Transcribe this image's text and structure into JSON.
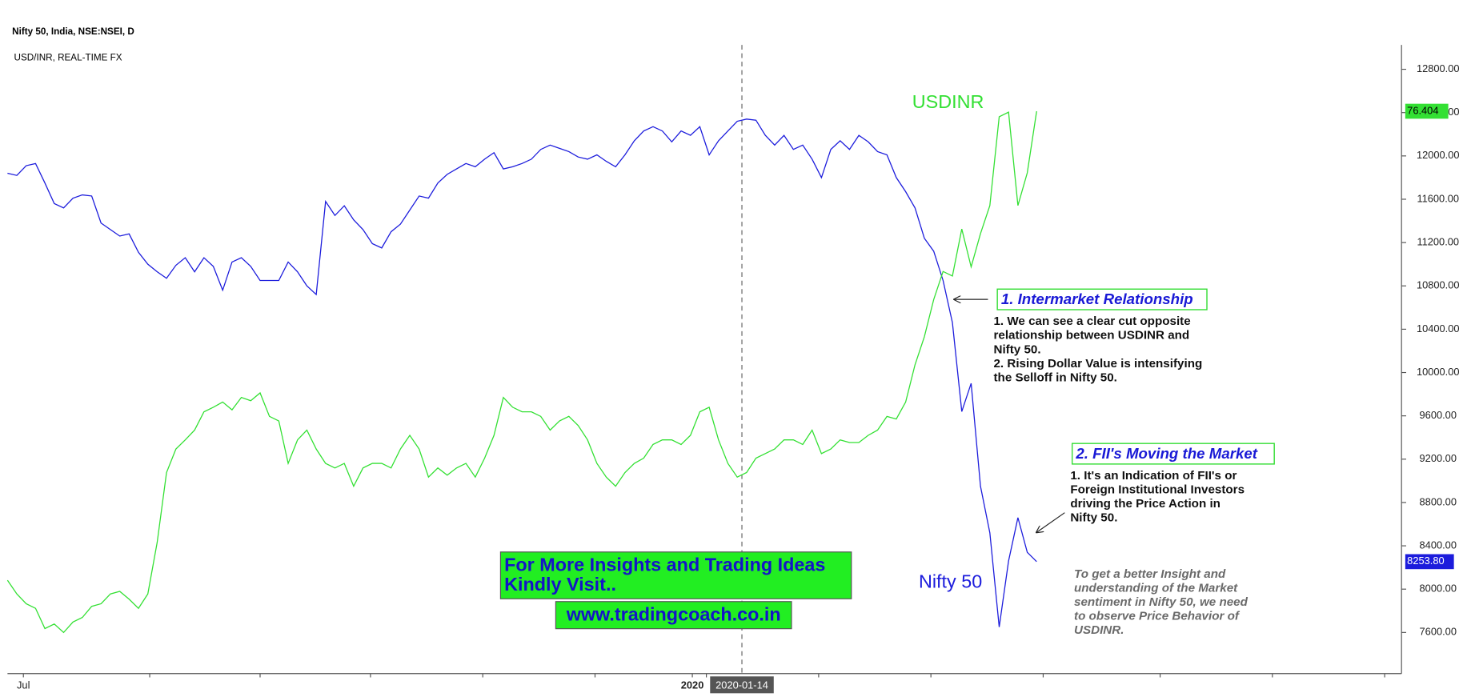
{
  "chart_data": {
    "type": "line",
    "title": "Nifty 50, India, NSE:NSEI, D",
    "subtitle": "USD/INR, REAL-TIME FX",
    "xlim": [
      0,
      149
    ],
    "xticks": [
      {
        "value": 1.7,
        "label": "Jul"
      },
      {
        "value": 73.2,
        "label": "2020"
      }
    ],
    "crosshair": {
      "value": 78.5,
      "label": "2020-01-14"
    },
    "ylim": [
      7220,
      13025
    ],
    "yticks": [
      {
        "value": 7600,
        "label": "7600.00"
      },
      {
        "value": 8000,
        "label": "8000.00"
      },
      {
        "value": 8400,
        "label": "8400.00"
      },
      {
        "value": 8800,
        "label": "8800.00"
      },
      {
        "value": 9200,
        "label": "9200.00"
      },
      {
        "value": 9600,
        "label": "9600.00"
      },
      {
        "value": 10000,
        "label": "10000.00"
      },
      {
        "value": 10400,
        "label": "10400.00"
      },
      {
        "value": 10800,
        "label": "10800.00"
      },
      {
        "value": 11200,
        "label": "11200.00"
      },
      {
        "value": 11600,
        "label": "11600.00"
      },
      {
        "value": 12000,
        "label": "12000.00"
      },
      {
        "value": 12400,
        "label": "12400.00"
      },
      {
        "value": 12800,
        "label": "12800.00"
      }
    ],
    "y2lim": [
      67.79,
      77.42
    ],
    "series": [
      {
        "name": "Nifty 50",
        "color": "#1c1cdc",
        "values": [
          11840,
          11820,
          11910,
          11930,
          11750,
          11560,
          11520,
          11610,
          11640,
          11630,
          11380,
          11320,
          11260,
          11280,
          11110,
          11000,
          10930,
          10870,
          10990,
          11060,
          10930,
          11060,
          10980,
          10760,
          11020,
          11060,
          10980,
          10850,
          10850,
          10850,
          11020,
          10930,
          10800,
          10720,
          11580,
          11450,
          11540,
          11410,
          11320,
          11190,
          11150,
          11300,
          11370,
          11500,
          11630,
          11610,
          11750,
          11830,
          11880,
          11930,
          11900,
          11970,
          12030,
          11880,
          11900,
          11930,
          11970,
          12060,
          12100,
          12070,
          12040,
          11990,
          11970,
          12010,
          11950,
          11900,
          12010,
          12140,
          12230,
          12270,
          12230,
          12130,
          12230,
          12190,
          12270,
          12010,
          12140,
          12230,
          12320,
          12340,
          12330,
          12190,
          12100,
          12190,
          12060,
          12100,
          11970,
          11800,
          12060,
          12140,
          12060,
          12190,
          12130,
          12040,
          12010,
          11800,
          11670,
          11520,
          11240,
          11120,
          10850,
          10460,
          9640,
          9900,
          8950,
          8520,
          7650,
          8260,
          8660,
          8340,
          8253.8
        ],
        "value_labels": [
          null,
          null,
          null,
          null,
          null,
          null,
          null,
          null,
          null,
          null,
          null,
          null,
          null,
          null,
          null,
          null,
          null,
          null,
          null,
          null,
          null,
          null,
          null,
          null,
          null,
          null,
          null,
          null,
          null,
          null,
          null,
          null,
          null,
          null,
          null,
          null,
          null,
          null,
          null,
          null,
          null,
          null,
          null,
          null,
          null,
          null,
          null,
          null,
          null,
          null,
          null,
          null,
          null,
          null,
          null,
          null,
          null,
          null,
          null,
          null,
          null,
          null,
          null,
          null,
          null,
          null,
          null,
          null,
          null,
          null,
          null,
          null,
          null,
          null,
          null,
          null,
          null,
          null,
          null,
          null,
          null,
          null,
          null,
          null,
          null,
          null,
          null,
          null,
          null,
          null,
          null,
          null,
          null,
          null,
          null,
          null,
          null,
          null,
          null,
          null,
          null,
          null,
          null,
          null,
          null,
          null,
          null,
          null,
          null,
          null,
          "8253.80"
        ]
      },
      {
        "name": "USDINR",
        "color": "#33e033",
        "axis": "y2",
        "values": [
          69.22,
          69.01,
          68.86,
          68.79,
          68.48,
          68.55,
          68.42,
          68.58,
          68.65,
          68.82,
          68.86,
          69.01,
          69.05,
          68.93,
          68.79,
          69.01,
          69.8,
          70.87,
          71.23,
          71.37,
          71.52,
          71.8,
          71.87,
          71.95,
          71.83,
          72.02,
          71.97,
          72.09,
          71.73,
          71.66,
          71.01,
          71.37,
          71.52,
          71.23,
          71.01,
          70.94,
          71.01,
          70.66,
          70.94,
          71.01,
          71.01,
          70.94,
          71.23,
          71.44,
          71.23,
          70.8,
          70.94,
          70.83,
          70.94,
          71.01,
          70.8,
          71.09,
          71.44,
          72.02,
          71.87,
          71.8,
          71.8,
          71.73,
          71.52,
          71.66,
          71.73,
          71.59,
          71.37,
          71.01,
          70.8,
          70.66,
          70.87,
          71.01,
          71.09,
          71.3,
          71.37,
          71.37,
          71.3,
          71.44,
          71.8,
          71.87,
          71.37,
          71.01,
          70.8,
          70.87,
          71.09,
          71.16,
          71.23,
          71.37,
          71.37,
          71.3,
          71.52,
          71.16,
          71.23,
          71.37,
          71.33,
          71.33,
          71.44,
          71.52,
          71.73,
          71.69,
          71.95,
          72.52,
          72.95,
          73.52,
          73.95,
          73.88,
          74.6,
          74.02,
          74.53,
          74.96,
          76.32,
          76.39,
          74.96,
          75.46,
          76.404
        ]
      }
    ],
    "annotations": [
      {
        "title": "1. Intermarket Relationship",
        "lines": [
          "1. We can see a clear cut opposite",
          "relationship between USDINR and",
          "Nifty 50.",
          "2. Rising Dollar Value is intensifying",
          "the Selloff in Nifty 50."
        ]
      },
      {
        "title": "2. FII's Moving the Market",
        "lines": [
          "1. It's an Indication of FII's or",
          "Foreign Institutional Investors",
          "driving the Price Action in",
          "Nifty 50."
        ]
      }
    ],
    "note": [
      "To get a better Insight and",
      "understanding of the Market",
      "sentiment in Nifty 50, we need",
      "to observe Price Behavior of",
      "USDINR."
    ],
    "promo": {
      "lines": [
        "For More Insights and Trading Ideas",
        "Kindly Visit.."
      ],
      "url": "www.tradingcoach.co.in"
    }
  }
}
